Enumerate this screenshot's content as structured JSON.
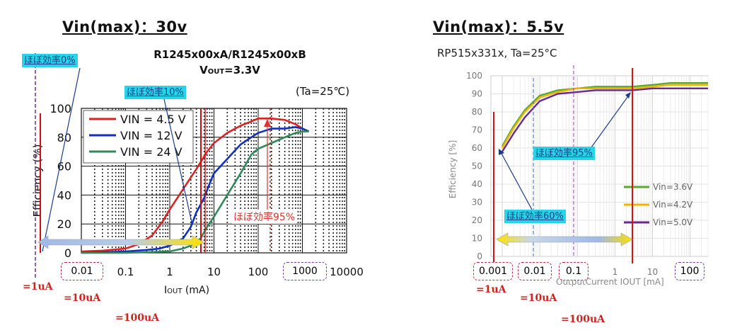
{
  "left": {
    "heading": "Vin(max)：30v",
    "title1": "R1245x00xA/R1245x00xB",
    "title2_main": "V",
    "title2_sub": "OUT",
    "title2_tail": "=3.3V",
    "condition": "(Ta=25℃)",
    "ylabel": "Efficiency (%)",
    "xlabel_main": "I",
    "xlabel_sub": "OUT",
    "xlabel_tail": " (mA)",
    "yticks": [
      "0",
      "20",
      "40",
      "60",
      "80",
      "100"
    ],
    "xticks": [
      "0.01",
      "0.1",
      "1",
      "10",
      "100",
      "1000",
      "10000"
    ],
    "legend": [
      "VIN =  4.5 V",
      "VIN =  12  V",
      "VIN =  24  V"
    ],
    "callouts": {
      "c0": "ほぼ効率0%",
      "c10": "ほぼ効率10%",
      "c95": "ほぼ効率95%"
    },
    "markers": {
      "m1": "=1uA",
      "m10": "=10uA",
      "m100": "=100uA"
    }
  },
  "right": {
    "heading": "Vin(max)：5.5v",
    "title": "RP515x331x, Ta=25°C",
    "ylabel": "Efficiency [%]",
    "xlabel": "OutputCurrent  IOUT [mA]",
    "yticks": [
      "0",
      "10",
      "20",
      "30",
      "40",
      "50",
      "60",
      "70",
      "80",
      "90",
      "100"
    ],
    "xticks": [
      "0.001",
      "0.01",
      "0.1",
      "1",
      "10",
      "100"
    ],
    "legend": [
      "Vin=3.6V",
      "Vin=4.2V",
      "Vin=5.0V"
    ],
    "callouts": {
      "c95": "ほぼ効率95%",
      "c60": "ほぼ効率60%"
    },
    "markers": {
      "m1": "=1uA",
      "m10": "=10uA",
      "m100": "=100uA"
    }
  },
  "colors": {
    "red": "#dd2222",
    "blue": "#1030c0",
    "green": "#2e8b57",
    "green_r": "#5aa832",
    "yellow_r": "#f0b400",
    "purple_r": "#6a2a8a",
    "callout_bg": "#27d6e6"
  },
  "chart_data": [
    {
      "type": "line",
      "title": "R1245x00xA/R1245x00xB  VOUT=3.3V",
      "xlabel": "IOUT (mA)",
      "ylabel": "Efficiency (%)",
      "x_scale": "log",
      "xlim": [
        0.01,
        10000
      ],
      "ylim": [
        0,
        100
      ],
      "grid": true,
      "legend_position": "top-left",
      "series": [
        {
          "name": "VIN =  4.5 V",
          "x": [
            0.01,
            0.03,
            0.1,
            0.2,
            0.4,
            0.7,
            1,
            2,
            4,
            7,
            10,
            20,
            40,
            70,
            100,
            200,
            400,
            700,
            1000,
            1400
          ],
          "y": [
            1,
            1.5,
            3,
            6,
            12,
            22,
            30,
            44,
            58,
            70,
            76,
            83,
            88,
            91,
            93,
            93,
            92,
            89,
            86,
            84
          ]
        },
        {
          "name": "VIN =  12  V",
          "x": [
            0.01,
            0.1,
            0.3,
            0.6,
            1,
            2,
            3,
            4,
            6,
            8,
            10,
            20,
            40,
            70,
            100,
            200,
            400,
            700,
            1000,
            1400
          ],
          "y": [
            0,
            1,
            2,
            3,
            5,
            10,
            18,
            28,
            38,
            48,
            55,
            65,
            75,
            80,
            83,
            86,
            86,
            87,
            86,
            84
          ]
        },
        {
          "name": "VIN =  24  V",
          "x": [
            0.01,
            0.1,
            1,
            2,
            3,
            5,
            7,
            10,
            20,
            40,
            70,
            100,
            200,
            400,
            700,
            1000,
            1400
          ],
          "y": [
            0,
            0,
            1,
            3,
            5,
            10,
            18,
            25,
            40,
            55,
            68,
            72,
            76,
            80,
            83,
            84,
            84
          ]
        }
      ],
      "annotations": [
        "ほぼ効率0%",
        "ほぼ効率10%",
        "ほぼ効率95%",
        "=1uA",
        "=10uA",
        "=100uA"
      ]
    },
    {
      "type": "line",
      "title": "RP515x331x, Ta=25°C",
      "xlabel": "OutputCurrent  IOUT [mA]",
      "ylabel": "Efficiency [%]",
      "x_scale": "log",
      "xlim": [
        0.0005,
        300
      ],
      "ylim": [
        0,
        100
      ],
      "grid": true,
      "legend_position": "right",
      "series": [
        {
          "name": "Vin=3.6V",
          "x": [
            0.001,
            0.002,
            0.004,
            0.01,
            0.03,
            0.1,
            0.3,
            1,
            3,
            10,
            30,
            100,
            300
          ],
          "y": [
            61,
            72,
            81,
            89,
            92,
            93,
            94,
            94,
            94,
            95,
            96,
            96,
            96
          ]
        },
        {
          "name": "Vin=4.2V",
          "x": [
            0.001,
            0.002,
            0.004,
            0.01,
            0.03,
            0.1,
            0.3,
            1,
            3,
            10,
            30,
            100,
            300
          ],
          "y": [
            60,
            71,
            80,
            88,
            91,
            93,
            93,
            93,
            93,
            94,
            95,
            95,
            95
          ]
        },
        {
          "name": "Vin=5.0V",
          "x": [
            0.001,
            0.002,
            0.004,
            0.01,
            0.03,
            0.1,
            0.3,
            1,
            3,
            10,
            30,
            100,
            300
          ],
          "y": [
            58,
            68,
            77,
            86,
            90,
            91,
            92,
            92,
            92,
            93,
            93,
            93,
            93
          ]
        }
      ],
      "annotations": [
        "ほぼ効率95%",
        "ほぼ効率60%",
        "=1uA",
        "=10uA",
        "=100uA"
      ]
    }
  ]
}
